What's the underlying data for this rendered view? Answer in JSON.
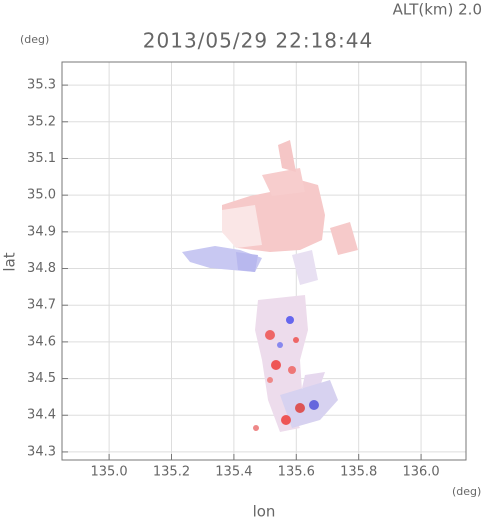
{
  "chart_data": {
    "type": "field",
    "title": "2013/05/29 22:18:44",
    "altitude_label": "ALT(km) 2.0",
    "x_label": "lon",
    "y_label": "lat",
    "x_unit": "(deg)",
    "y_unit": "(deg)",
    "xlim": [
      134.849,
      136.144
    ],
    "ylim": [
      34.278,
      35.363
    ],
    "xticks": [
      {
        "value": 135,
        "label": "135.0"
      },
      135.2,
      135.4,
      135.6,
      135.8,
      {
        "value": 136,
        "label": "136.0"
      }
    ],
    "yticks": [
      34.3,
      34.4,
      34.5,
      34.6,
      34.7,
      34.8,
      34.9,
      {
        "value": 35,
        "label": "35.0"
      },
      35.1,
      35.2,
      35.3
    ],
    "grid": true
  }
}
